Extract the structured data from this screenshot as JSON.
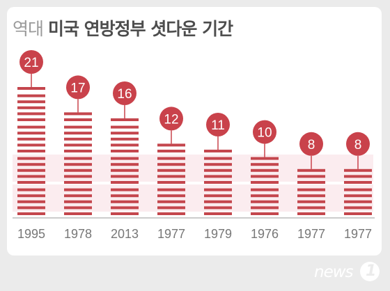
{
  "title_part1": "역대",
  "title_part2": "미국 연방정부 셧다운 기간",
  "brand": {
    "text": "news",
    "number": "1"
  },
  "colors": {
    "bar": "#c4464d",
    "band": "#fbecef",
    "badge": "#c9424b",
    "axis": "#bbbbbb",
    "year": "#777777"
  },
  "chart_data": {
    "type": "bar",
    "title": "역대 미국 연방정부 셧다운 기간",
    "categories": [
      "1995",
      "1978",
      "2013",
      "1977",
      "1979",
      "1976",
      "1977",
      "1977"
    ],
    "values": [
      21,
      17,
      16,
      12,
      11,
      10,
      8,
      8
    ],
    "xlabel": "",
    "ylabel": "",
    "ylim": [
      0,
      21
    ],
    "grid": false,
    "legend": "none"
  }
}
